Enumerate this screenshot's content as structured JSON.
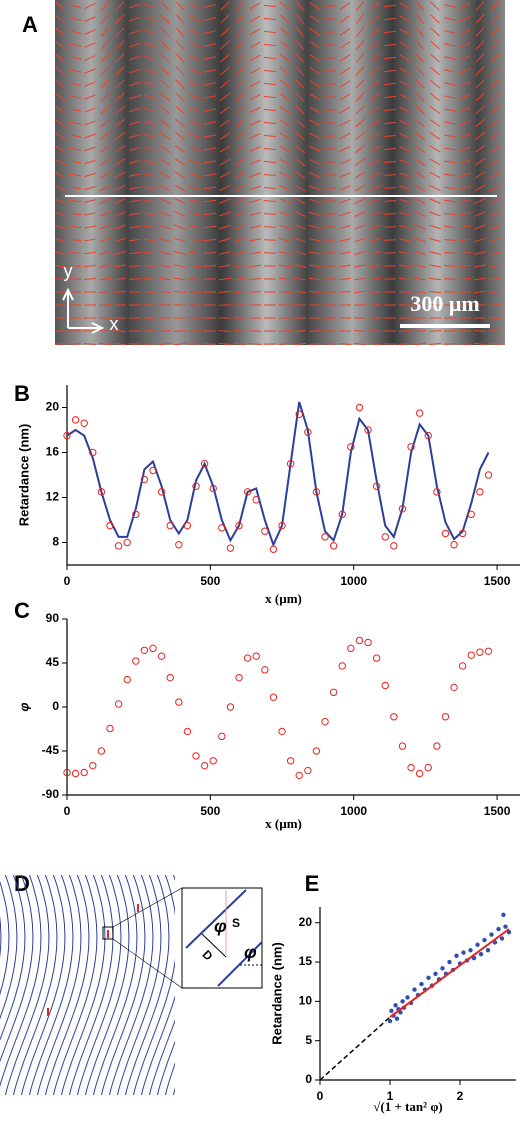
{
  "panel_a": {
    "label": "A",
    "scale_bar": "300 μm",
    "axis_y": "y",
    "axis_x": "x"
  },
  "panel_d": {
    "label": "D",
    "inset_angle_1": "φ",
    "inset_s": "S",
    "inset_d": "D",
    "inset_angle_2": "φ"
  },
  "chart_data": [
    {
      "type": "line",
      "label": "B",
      "x_label": "x (µm)",
      "y_label": "Retardance (nm)",
      "xlim": [
        0,
        1580
      ],
      "xticks": [
        0,
        500,
        1000,
        1500
      ],
      "ylim": [
        6,
        22
      ],
      "yticks": [
        8,
        12,
        16,
        20
      ],
      "x": [
        0,
        30,
        60,
        90,
        120,
        150,
        180,
        210,
        240,
        270,
        300,
        330,
        360,
        390,
        420,
        450,
        480,
        510,
        540,
        570,
        600,
        630,
        660,
        690,
        720,
        750,
        780,
        810,
        840,
        870,
        900,
        930,
        960,
        990,
        1020,
        1050,
        1080,
        1110,
        1140,
        1170,
        1200,
        1230,
        1260,
        1290,
        1320,
        1350,
        1380,
        1410,
        1440,
        1470
      ],
      "series": [
        {
          "color": "#2b3f9a",
          "style": "line",
          "values": [
            17.5,
            18,
            17.5,
            15.5,
            12.5,
            10,
            8.5,
            8.5,
            11,
            14.5,
            15.2,
            13,
            10,
            8.8,
            10,
            13.5,
            15,
            13,
            10,
            8.2,
            9.5,
            12.5,
            12.8,
            10,
            7.8,
            9.5,
            15,
            20.5,
            18,
            12.5,
            9,
            8.2,
            10.5,
            16,
            19,
            18,
            13.5,
            9.5,
            8.5,
            11,
            16,
            18.5,
            17.5,
            13,
            9.8,
            8.3,
            9,
            11.5,
            14.5,
            16
          ]
        },
        {
          "color": "#e8231f",
          "style": "circles",
          "values": [
            17.5,
            18.9,
            18.6,
            16,
            12.5,
            9.5,
            7.7,
            8.0,
            10.5,
            13.6,
            14.4,
            12.5,
            9.5,
            7.8,
            9.5,
            13,
            15,
            12.8,
            9.3,
            7.5,
            9.5,
            12.5,
            11.8,
            9,
            7.4,
            9.5,
            15,
            19.4,
            17.8,
            12.5,
            8.5,
            7.7,
            10.5,
            16.5,
            20,
            18,
            13,
            8.5,
            7.7,
            11,
            16.5,
            19.5,
            17.5,
            12.5,
            8.8,
            7.8,
            8.8,
            10.5,
            12.5,
            14
          ]
        }
      ]
    },
    {
      "type": "line",
      "label": "C",
      "x_label": "x (µm)",
      "y_label": "φ",
      "xlim": [
        0,
        1580
      ],
      "xticks": [
        0,
        500,
        1000,
        1500
      ],
      "ylim": [
        -90,
        90
      ],
      "yticks": [
        -90,
        -45,
        0,
        45,
        90
      ],
      "x": [
        0,
        30,
        60,
        90,
        120,
        150,
        180,
        210,
        240,
        270,
        300,
        330,
        360,
        390,
        420,
        450,
        480,
        510,
        540,
        570,
        600,
        630,
        660,
        690,
        720,
        750,
        780,
        810,
        840,
        870,
        900,
        930,
        960,
        990,
        1020,
        1050,
        1080,
        1110,
        1140,
        1170,
        1200,
        1230,
        1260,
        1290,
        1320,
        1350,
        1380,
        1410,
        1440,
        1470
      ],
      "series": [
        {
          "color": "#e8231f",
          "style": "circles",
          "values": [
            -67,
            -68,
            -67,
            -60,
            -45,
            -22,
            3,
            28,
            47,
            58,
            60,
            52,
            30,
            5,
            -25,
            -50,
            -60,
            -55,
            -30,
            0,
            30,
            50,
            52,
            38,
            10,
            -25,
            -55,
            -70,
            -65,
            -45,
            -15,
            15,
            42,
            60,
            68,
            66,
            50,
            22,
            -10,
            -40,
            -62,
            -68,
            -62,
            -40,
            -10,
            20,
            42,
            53,
            56,
            57
          ]
        }
      ]
    },
    {
      "type": "scatter",
      "label": "E",
      "x_label": "√(1 + tan² φ)",
      "y_label": "Retardance (nm)",
      "xlim": [
        0,
        2.8
      ],
      "xticks": [
        0,
        1,
        2
      ],
      "ylim": [
        0,
        22
      ],
      "yticks": [
        0,
        5,
        10,
        15,
        20
      ],
      "series": [
        {
          "color": "#2f4fb0",
          "style": "dots",
          "x": [
            1.0,
            1.02,
            1.05,
            1.08,
            1.1,
            1.12,
            1.15,
            1.18,
            1.2,
            1.25,
            1.3,
            1.35,
            1.4,
            1.45,
            1.5,
            1.55,
            1.6,
            1.65,
            1.7,
            1.75,
            1.8,
            1.85,
            1.9,
            1.95,
            2.0,
            2.05,
            2.1,
            2.15,
            2.2,
            2.25,
            2.3,
            2.35,
            2.4,
            2.45,
            2.5,
            2.55,
            2.6,
            2.62,
            2.65,
            2.7
          ],
          "values": [
            7.5,
            8.8,
            8.2,
            9.5,
            7.8,
            9,
            8.6,
            10,
            9.2,
            10.5,
            9.8,
            11.5,
            10.8,
            12.2,
            11.5,
            13,
            12,
            13.5,
            12.8,
            14.2,
            13.5,
            15,
            14,
            15.8,
            14.8,
            16.2,
            15.2,
            16.5,
            15.5,
            17.2,
            16,
            17.8,
            16.5,
            18.5,
            17.5,
            19.2,
            18,
            21,
            19.5,
            18.8
          ]
        },
        {
          "color": "#e8231f",
          "style": "line",
          "x": [
            1,
            2.7
          ],
          "values": [
            8,
            19.2
          ]
        },
        {
          "color": "#000000",
          "style": "dashed",
          "x": [
            0,
            1
          ],
          "values": [
            0,
            8
          ]
        }
      ]
    }
  ]
}
